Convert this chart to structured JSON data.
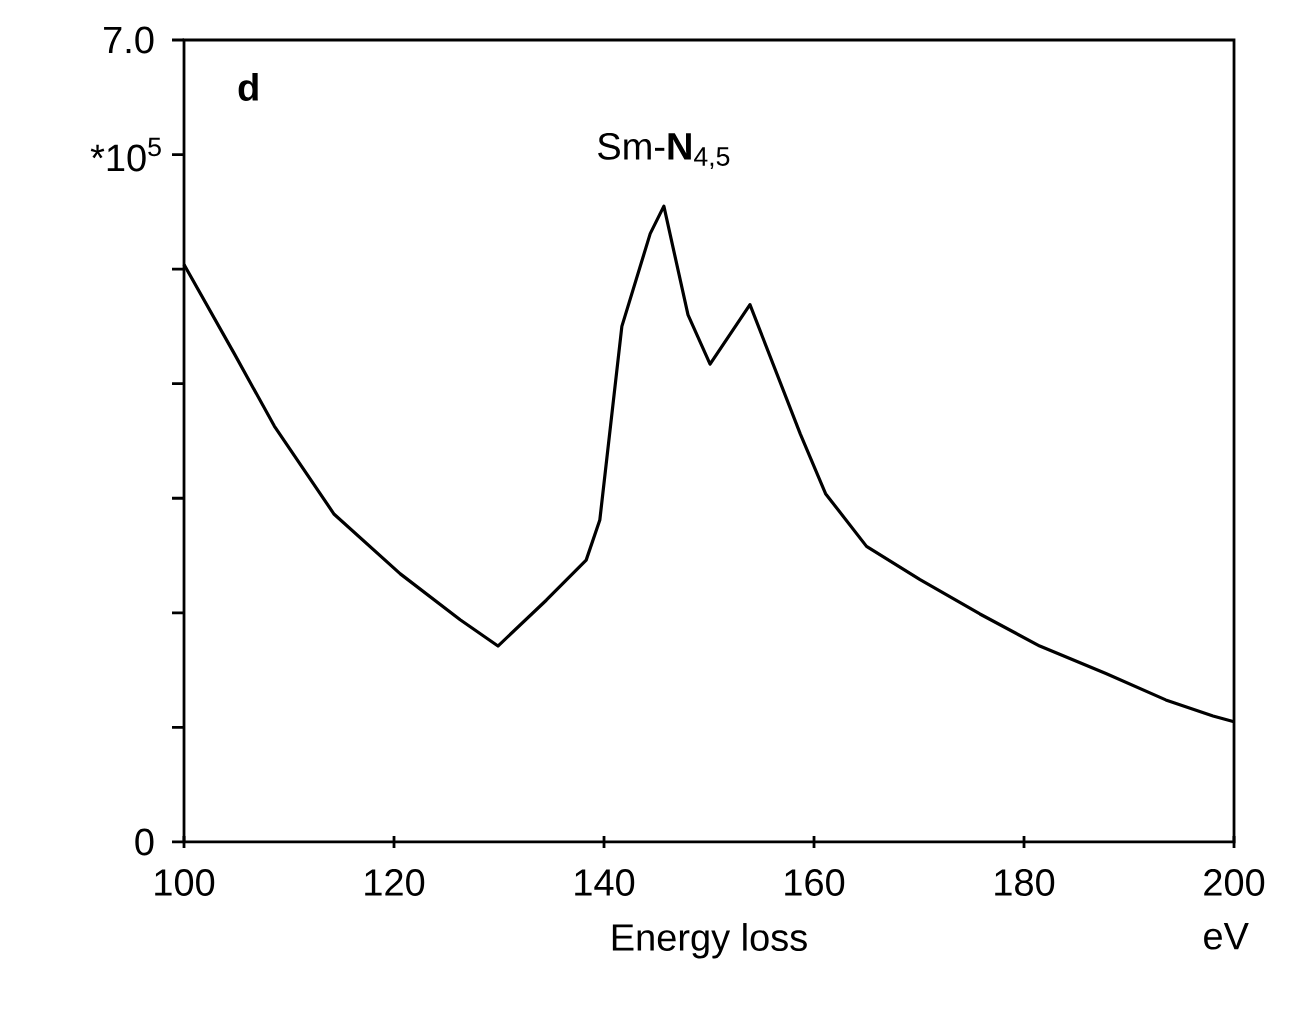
{
  "chart_data": {
    "type": "line",
    "xlabel": "Energy loss",
    "ylabel": "*10$^{5}$",
    "annotations": [
      "**d**",
      {
        "text": "Sm-**N**$_{4,5}$",
        "x": 145.7,
        "y": 5.55
      },
      "eV"
    ],
    "x": [
      100,
      104.8,
      108.6,
      114.3,
      120.6,
      126.3,
      129.9,
      134.5,
      138.3,
      139.6,
      141.7,
      144.4,
      145.7,
      148,
      150.1,
      153.9,
      158.7,
      161.1,
      165,
      170.1,
      175.8,
      181.5,
      187.8,
      193.5,
      198,
      200
    ],
    "series": [
      {
        "color": "#000000",
        "values": [
          5.04,
          4.26,
          3.63,
          2.86,
          2.34,
          1.94,
          1.71,
          2.11,
          2.46,
          2.81,
          4.5,
          5.31,
          5.55,
          4.6,
          4.17,
          4.69,
          3.56,
          3.04,
          2.58,
          2.29,
          1.99,
          1.71,
          1.47,
          1.24,
          1.1,
          1.05
        ]
      }
    ],
    "xlim": [
      100,
      200
    ],
    "ylim": [
      0,
      7.0
    ],
    "xticks": [
      100,
      120,
      140,
      160,
      180,
      200
    ],
    "yticks": [
      {
        "value": 0,
        "label": "0"
      },
      {
        "value": 1,
        "label": null
      },
      {
        "value": 2,
        "label": null
      },
      {
        "value": 3,
        "label": null
      },
      {
        "value": 4,
        "label": null
      },
      {
        "value": 5,
        "label": null
      },
      {
        "value": 6,
        "label": null
      },
      {
        "value": 7.0,
        "label": "7.0"
      }
    ],
    "grid": false,
    "marker": "none",
    "line_style": "solid"
  }
}
